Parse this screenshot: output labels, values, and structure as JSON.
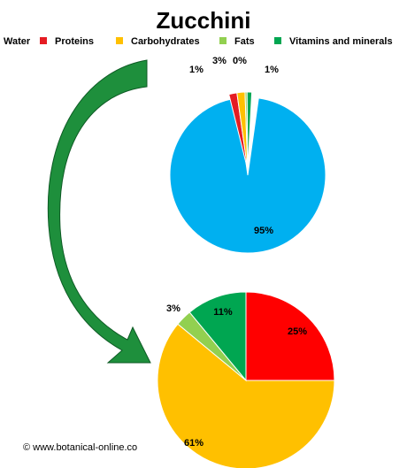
{
  "credit": "© www.botanical-online.co",
  "chart_data": [
    {
      "type": "pie",
      "title": "Zucchini",
      "legend": {
        "placement": "top",
        "items": [
          {
            "label": "Water",
            "color": ""
          },
          {
            "label": "Proteins",
            "color": "#e51c23"
          },
          {
            "label": "Carbohydrates",
            "color": "#ffc000"
          },
          {
            "label": "Fats",
            "color": "#92d050"
          },
          {
            "label": "Vitamins and minerals",
            "color": "#00a651"
          }
        ]
      },
      "slices": [
        {
          "label": "Water",
          "value": 95,
          "display": "95%",
          "color": "#00b0f0"
        },
        {
          "label": "Proteins",
          "value": 1,
          "display": "1%",
          "color": "#e51c23"
        },
        {
          "label": "Carbohydrates",
          "value": 3,
          "display": "3%",
          "color": "#ffc000"
        },
        {
          "label": "Fats",
          "value": 0,
          "display": "0%",
          "color": "#92d050"
        },
        {
          "label": "Vitamins and minerals",
          "value": 1,
          "display": "1%",
          "color": "#00a651"
        }
      ]
    },
    {
      "type": "pie",
      "slices": [
        {
          "label": "Proteins",
          "value": 25,
          "display": "25%",
          "color": "#ff0000"
        },
        {
          "label": "Carbohydrates",
          "value": 61,
          "display": "61%",
          "color": "#ffc000"
        },
        {
          "label": "Fats",
          "value": 3,
          "display": "3%",
          "color": "#92d050"
        },
        {
          "label": "Vitamins and minerals",
          "value": 11,
          "display": "11%",
          "color": "#00a651"
        }
      ]
    }
  ],
  "arrow_color": "#1e8f3c"
}
